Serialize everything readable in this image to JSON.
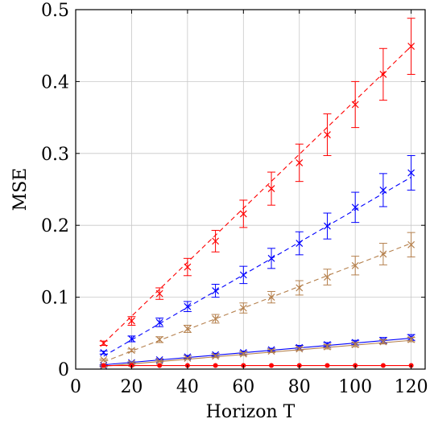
{
  "chart_data": {
    "type": "line",
    "title": "",
    "xlabel": "Horizon T",
    "ylabel": "MSE",
    "xlim": [
      0,
      125
    ],
    "ylim": [
      0,
      0.5
    ],
    "xticks": [
      0,
      20,
      40,
      60,
      80,
      100,
      120
    ],
    "yticks": [
      0,
      0.1,
      0.2,
      0.3,
      0.4,
      0.5
    ],
    "xtick_labels": [
      "0",
      "20",
      "40",
      "60",
      "80",
      "100",
      "120"
    ],
    "ytick_labels": [
      "0",
      "0.1",
      "0.2",
      "0.3",
      "0.4",
      "0.5"
    ],
    "grid": true,
    "legend": "none",
    "x": [
      10,
      20,
      30,
      40,
      50,
      60,
      70,
      80,
      90,
      100,
      110,
      120
    ],
    "series": [
      {
        "color": "#ff0000",
        "style": "dashed",
        "marker": "x",
        "values": [
          0.036,
          0.067,
          0.105,
          0.142,
          0.178,
          0.216,
          0.251,
          0.287,
          0.326,
          0.368,
          0.41,
          0.449
        ],
        "errors": [
          0.003,
          0.006,
          0.008,
          0.012,
          0.015,
          0.019,
          0.023,
          0.026,
          0.029,
          0.032,
          0.036,
          0.039
        ],
        "fit": [
          [
            10,
            0.036
          ],
          [
            120,
            0.449
          ]
        ]
      },
      {
        "color": "#0000ff",
        "style": "dashed",
        "marker": "x",
        "values": [
          0.023,
          0.042,
          0.065,
          0.087,
          0.109,
          0.131,
          0.154,
          0.175,
          0.199,
          0.225,
          0.249,
          0.273
        ],
        "errors": [
          0.002,
          0.004,
          0.006,
          0.007,
          0.009,
          0.012,
          0.014,
          0.016,
          0.018,
          0.021,
          0.023,
          0.024
        ],
        "fit": [
          [
            10,
            0.018
          ],
          [
            120,
            0.267
          ]
        ]
      },
      {
        "color": "#b5804d",
        "style": "dashed",
        "marker": "x",
        "values": [
          0.013,
          0.026,
          0.041,
          0.056,
          0.07,
          0.085,
          0.1,
          0.113,
          0.128,
          0.144,
          0.16,
          0.173
        ],
        "errors": [
          0.001,
          0.002,
          0.004,
          0.005,
          0.006,
          0.007,
          0.008,
          0.01,
          0.011,
          0.013,
          0.015,
          0.017
        ],
        "fit": [
          [
            10,
            0.01
          ],
          [
            120,
            0.175
          ]
        ]
      },
      {
        "color": "#0000ff",
        "style": "solid",
        "marker": "x",
        "values": [
          0.005,
          0.009,
          0.013,
          0.017,
          0.02,
          0.023,
          0.027,
          0.03,
          0.034,
          0.037,
          0.04,
          0.044
        ],
        "errors": [
          0.001,
          0.001,
          0.001,
          0.002,
          0.002,
          0.002,
          0.002,
          0.003,
          0.003,
          0.003,
          0.004,
          0.004
        ],
        "fit": [
          [
            10,
            0.006
          ],
          [
            120,
            0.043
          ]
        ]
      },
      {
        "color": "#b5804d",
        "style": "solid",
        "marker": "x",
        "values": [
          0.004,
          0.008,
          0.011,
          0.015,
          0.018,
          0.021,
          0.025,
          0.028,
          0.031,
          0.034,
          0.038,
          0.041
        ],
        "errors": [
          0.001,
          0.001,
          0.001,
          0.001,
          0.002,
          0.002,
          0.002,
          0.002,
          0.003,
          0.003,
          0.003,
          0.003
        ],
        "fit": [
          [
            10,
            0.004
          ],
          [
            120,
            0.04
          ]
        ]
      },
      {
        "color": "#ff0000",
        "style": "solid",
        "marker": "dot",
        "values": [
          0.005,
          0.005,
          0.005,
          0.005,
          0.005,
          0.005,
          0.005,
          0.005,
          0.005,
          0.005,
          0.005,
          0.005
        ],
        "errors": [
          0,
          0,
          0,
          0,
          0,
          0,
          0,
          0,
          0,
          0,
          0,
          0
        ],
        "fit": [
          [
            10,
            0.005
          ],
          [
            120,
            0.005
          ]
        ]
      }
    ]
  }
}
